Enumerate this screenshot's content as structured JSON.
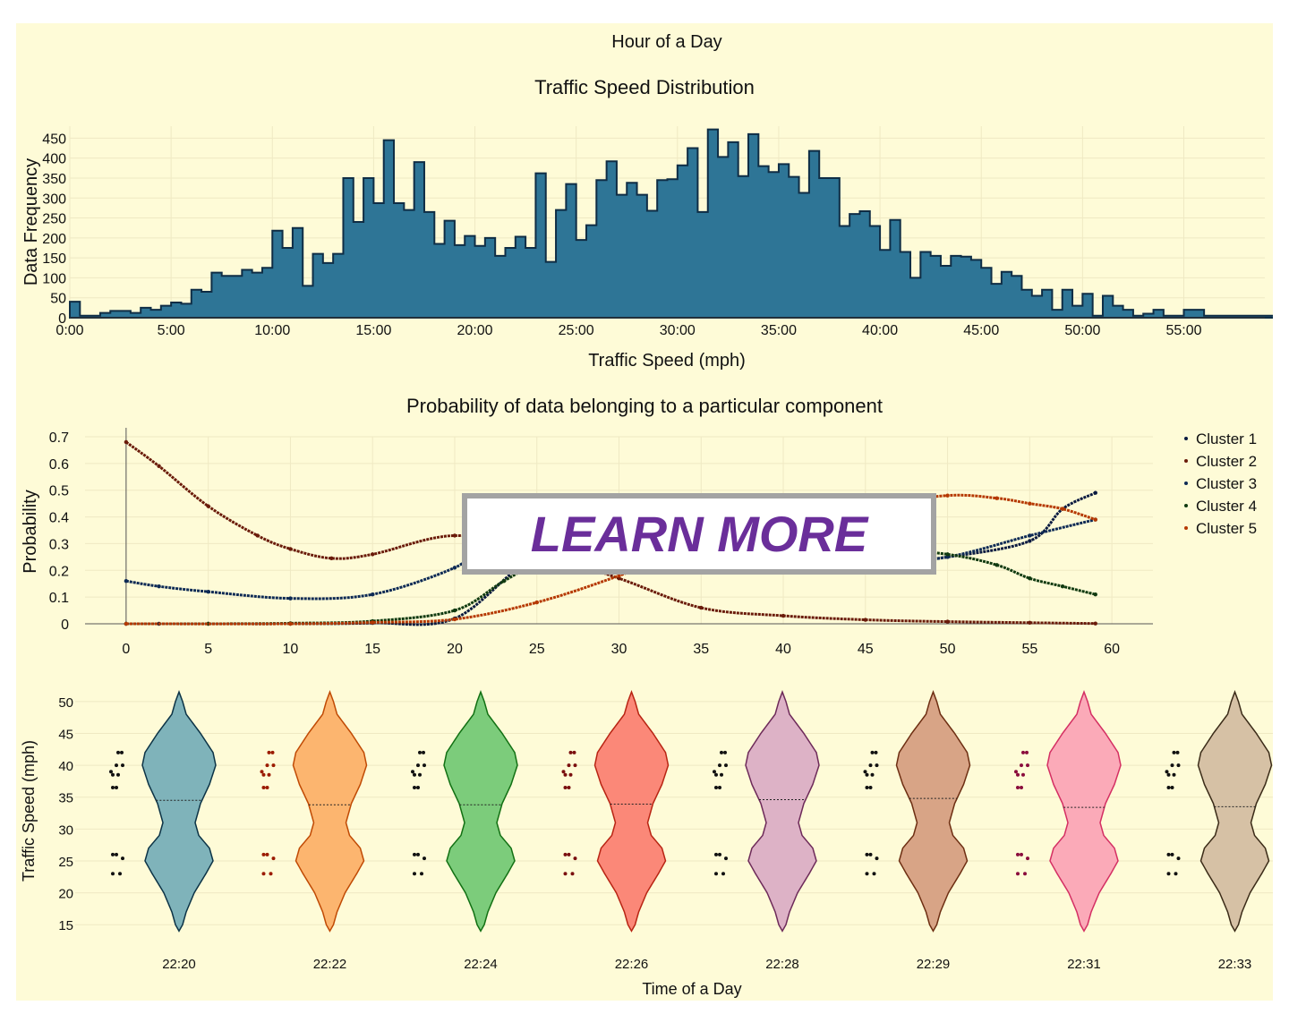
{
  "colors": {
    "panel_bg": "#fefbd7",
    "grid": "#efe9c3",
    "histogram_fill": "#2e7596",
    "histogram_edge": "#0f2d45",
    "cta_text": "#6a2e9a",
    "cta_border": "#a3a3a3"
  },
  "top_title": "Hour of a Day",
  "cta_label": "LEARN MORE",
  "chart_data": [
    {
      "type": "bar",
      "title": "Traffic Speed Distribution",
      "xlabel": "Traffic Speed (mph)",
      "ylabel": "Data Frequency",
      "x_ticks": [
        "0:00",
        "5:00",
        "10:00",
        "15:00",
        "20:00",
        "25:00",
        "30:00",
        "35:00",
        "40:00",
        "45:00",
        "50:00",
        "55:00"
      ],
      "y_ticks": [
        0,
        50,
        100,
        150,
        200,
        250,
        300,
        350,
        400,
        450
      ],
      "xlim": [
        0,
        59
      ],
      "ylim": [
        0,
        480
      ],
      "grid": true,
      "bin_start": 0.25,
      "bin_width": 0.5,
      "values": [
        40,
        5,
        5,
        12,
        17,
        17,
        12,
        25,
        20,
        30,
        38,
        35,
        70,
        65,
        113,
        105,
        105,
        120,
        113,
        125,
        218,
        175,
        225,
        80,
        160,
        137,
        160,
        350,
        240,
        350,
        287,
        445,
        287,
        270,
        390,
        265,
        185,
        243,
        182,
        205,
        180,
        200,
        155,
        175,
        203,
        175,
        362,
        140,
        270,
        335,
        195,
        232,
        345,
        392,
        308,
        338,
        308,
        268,
        345,
        347,
        382,
        425,
        265,
        472,
        403,
        440,
        355,
        460,
        380,
        365,
        385,
        353,
        313,
        418,
        350,
        350,
        230,
        260,
        267,
        230,
        170,
        245,
        165,
        100,
        165,
        155,
        130,
        155,
        153,
        145,
        125,
        85,
        115,
        105,
        70,
        55,
        70,
        20,
        70,
        30,
        60,
        5,
        55,
        30,
        20,
        5,
        10,
        20,
        5,
        5,
        20,
        20,
        5,
        5,
        5,
        5,
        5,
        5,
        5,
        15
      ],
      "note_type": "histogram"
    },
    {
      "type": "scatter",
      "title": "Probability of data belonging to a particular component",
      "xlabel": "",
      "ylabel": "Probability",
      "x_ticks": [
        0,
        5,
        10,
        15,
        20,
        25,
        30,
        35,
        40,
        45,
        50,
        55,
        60
      ],
      "y_ticks": [
        "0",
        "0.1",
        "0.2",
        "0.3",
        "0.4",
        "0.5",
        "0.6",
        "0.7"
      ],
      "xlim": [
        -2.5,
        62.5
      ],
      "ylim": [
        0,
        0.7
      ],
      "legend": "top-right",
      "series": [
        {
          "name": "Cluster 1",
          "color": "#0a1a40",
          "points": [
            [
              0,
              0.0
            ],
            [
              2,
              0.0
            ],
            [
              5,
              0.0
            ],
            [
              10,
              0.0
            ],
            [
              15,
              0.003
            ],
            [
              20,
              0.02
            ],
            [
              25,
              0.25
            ],
            [
              30,
              0.25
            ],
            [
              35,
              0.23
            ],
            [
              40,
              0.21
            ],
            [
              45,
              0.22
            ],
            [
              50,
              0.25
            ],
            [
              55,
              0.31
            ],
            [
              57,
              0.43
            ],
            [
              59,
              0.49
            ]
          ]
        },
        {
          "name": "Cluster 2",
          "color": "#6a1b0a",
          "points": [
            [
              0,
              0.68
            ],
            [
              2,
              0.59
            ],
            [
              5,
              0.44
            ],
            [
              8,
              0.33
            ],
            [
              10,
              0.28
            ],
            [
              12.5,
              0.245
            ],
            [
              15,
              0.26
            ],
            [
              20,
              0.33
            ],
            [
              25,
              0.27
            ],
            [
              30,
              0.17
            ],
            [
              35,
              0.06
            ],
            [
              40,
              0.03
            ],
            [
              45,
              0.015
            ],
            [
              50,
              0.008
            ],
            [
              55,
              0.004
            ],
            [
              59,
              0.001
            ]
          ]
        },
        {
          "name": "Cluster 3",
          "color": "#0d2a55",
          "points": [
            [
              0,
              0.16
            ],
            [
              2,
              0.14
            ],
            [
              5,
              0.12
            ],
            [
              10,
              0.095
            ],
            [
              15,
              0.11
            ],
            [
              20,
              0.21
            ],
            [
              22,
              0.3
            ],
            [
              25,
              0.27
            ],
            [
              30,
              0.25
            ],
            [
              35,
              0.23
            ],
            [
              40,
              0.21
            ],
            [
              45,
              0.22
            ],
            [
              50,
              0.25
            ],
            [
              55,
              0.33
            ],
            [
              59,
              0.39
            ]
          ]
        },
        {
          "name": "Cluster 4",
          "color": "#103a10",
          "points": [
            [
              0,
              0.0
            ],
            [
              5,
              0.0
            ],
            [
              10,
              0.002
            ],
            [
              15,
              0.01
            ],
            [
              20,
              0.05
            ],
            [
              23,
              0.16
            ],
            [
              26.3,
              0.27
            ],
            [
              30,
              0.33
            ],
            [
              35,
              0.33
            ],
            [
              40,
              0.31
            ],
            [
              45,
              0.29
            ],
            [
              50,
              0.26
            ],
            [
              53,
              0.22
            ],
            [
              55,
              0.17
            ],
            [
              57,
              0.14
            ],
            [
              59,
              0.11
            ]
          ]
        },
        {
          "name": "Cluster 5",
          "color": "#b53800",
          "points": [
            [
              0,
              0.0
            ],
            [
              10,
              0.0
            ],
            [
              15,
              0.005
            ],
            [
              20,
              0.017
            ],
            [
              25,
              0.08
            ],
            [
              30,
              0.18
            ],
            [
              35,
              0.3
            ],
            [
              40,
              0.39
            ],
            [
              45,
              0.44
            ],
            [
              50,
              0.48
            ],
            [
              53,
              0.47
            ],
            [
              55,
              0.45
            ],
            [
              57,
              0.43
            ],
            [
              59,
              0.39
            ]
          ]
        }
      ]
    },
    {
      "type": "violin",
      "title": "",
      "xlabel": "Time of a Day",
      "ylabel": "Traffic Speed (mph)",
      "categories": [
        "22:20",
        "22:22",
        "22:24",
        "22:26",
        "22:28",
        "22:29",
        "22:31",
        "22:33"
      ],
      "y_ticks": [
        15,
        20,
        25,
        30,
        35,
        40,
        45,
        50
      ],
      "ylim": [
        12.5,
        52.5
      ],
      "medians": [
        34.5,
        33.8,
        33.8,
        33.9,
        34.6,
        34.8,
        33.4,
        33.5
      ],
      "series": [
        {
          "fill": "#7fb3ba",
          "stroke": "#0c3346",
          "point_color": "#111111"
        },
        {
          "fill": "#fcb56f",
          "stroke": "#c04a04",
          "point_color": "#9b1b00"
        },
        {
          "fill": "#7ccc7b",
          "stroke": "#127013",
          "point_color": "#111111"
        },
        {
          "fill": "#fb8878",
          "stroke": "#b82413",
          "point_color": "#7a0f0f"
        },
        {
          "fill": "#ddb2c6",
          "stroke": "#6d2a59",
          "point_color": "#111111"
        },
        {
          "fill": "#d8a486",
          "stroke": "#6d2e12",
          "point_color": "#111111"
        },
        {
          "fill": "#fbaab8",
          "stroke": "#d42f63",
          "point_color": "#8a0c3c"
        },
        {
          "fill": "#d6c1a5",
          "stroke": "#3b2b18",
          "point_color": "#111111"
        }
      ],
      "sample_points": [
        42,
        42,
        40,
        39,
        40,
        38.5,
        38.5,
        36.5,
        36.5,
        26,
        26,
        25.4,
        23,
        23
      ]
    }
  ]
}
